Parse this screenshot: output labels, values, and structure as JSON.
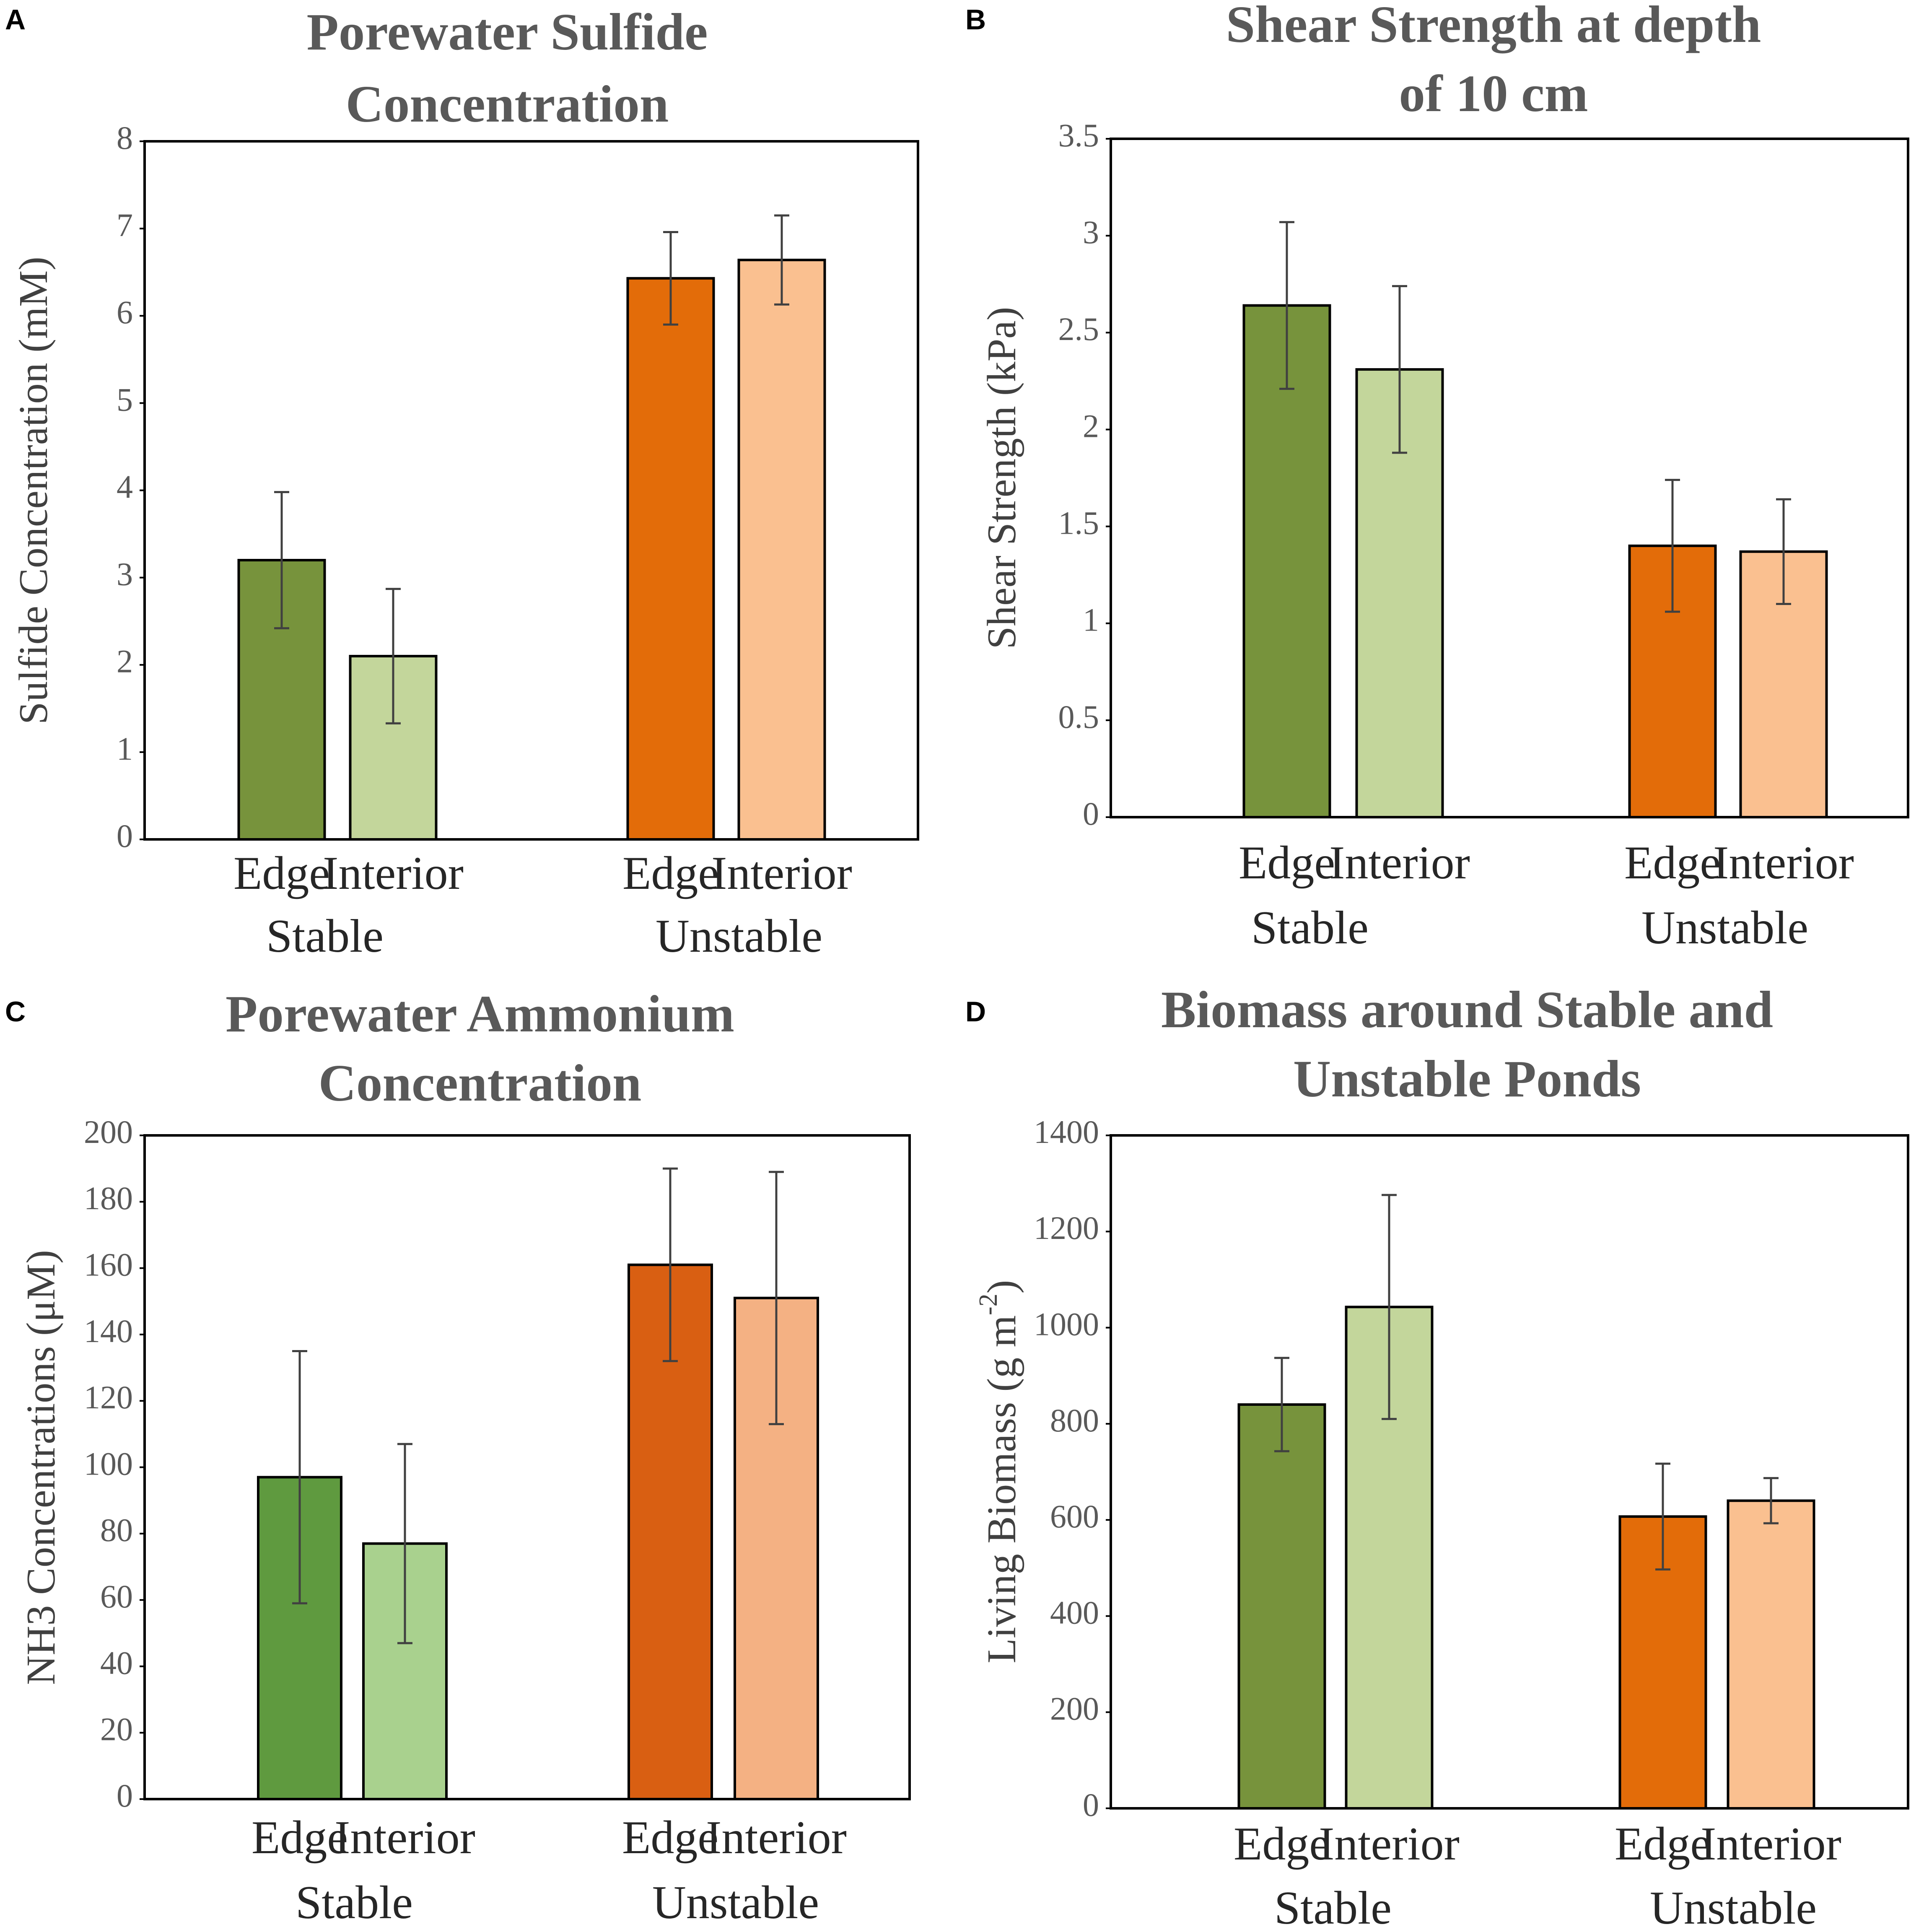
{
  "chart_data": [
    {
      "panel": "A",
      "type": "bar",
      "title": [
        "Porewater Sulfide",
        "Concentration"
      ],
      "ylabel": "Sulfide Concentration (mM)",
      "xlabel": "",
      "ylim": [
        0,
        8
      ],
      "yticks": [
        "0",
        "1",
        "2",
        "3",
        "4",
        "5",
        "6",
        "7",
        "8"
      ],
      "groups": [
        {
          "name": "Stable",
          "bars": [
            {
              "label": "Edge",
              "value": 3.2,
              "err": 0.78,
              "color": "#77933c"
            },
            {
              "label": "Interior",
              "value": 2.1,
              "err": 0.77,
              "color": "#c3d69b"
            }
          ]
        },
        {
          "name": "Unstable",
          "bars": [
            {
              "label": "Edge",
              "value": 6.43,
              "err": 0.53,
              "color": "#e36c09"
            },
            {
              "label": "Interior",
              "value": 6.64,
              "err": 0.51,
              "color": "#fac090"
            }
          ]
        }
      ]
    },
    {
      "panel": "B",
      "type": "bar",
      "title": [
        "Shear Strength at depth",
        "of 10 cm"
      ],
      "ylabel": "Shear Strength (kPa)",
      "xlabel": "",
      "ylim": [
        0,
        3.5
      ],
      "yticks": [
        "0",
        "0.5",
        "1",
        "1.5",
        "2",
        "2.5",
        "3",
        "3.5"
      ],
      "groups": [
        {
          "name": "Stable",
          "bars": [
            {
              "label": "Edge",
              "value": 2.64,
              "err": 0.43,
              "color": "#77933c"
            },
            {
              "label": "Interior",
              "value": 2.31,
              "err": 0.43,
              "color": "#c3d69b"
            }
          ]
        },
        {
          "name": "Unstable",
          "bars": [
            {
              "label": "Edge",
              "value": 1.4,
              "err": 0.34,
              "color": "#e36c09"
            },
            {
              "label": "Interior",
              "value": 1.37,
              "err": 0.27,
              "color": "#fac090"
            }
          ]
        }
      ]
    },
    {
      "panel": "C",
      "type": "bar",
      "title": [
        "Porewater Ammonium",
        "Concentration"
      ],
      "ylabel": "NH3 Concentrations (μM)",
      "xlabel": "",
      "ylim": [
        0,
        200
      ],
      "yticks": [
        "0",
        "20",
        "40",
        "60",
        "80",
        "100",
        "120",
        "140",
        "160",
        "180",
        "200"
      ],
      "groups": [
        {
          "name": "Stable",
          "bars": [
            {
              "label": "Edge",
              "value": 97,
              "err": 38,
              "color": "#5f9a3f"
            },
            {
              "label": "Interior",
              "value": 77,
              "err": 30,
              "color": "#a9d18e"
            }
          ]
        },
        {
          "name": "Unstable",
          "bars": [
            {
              "label": "Edge",
              "value": 161,
              "err": 29,
              "color": "#d95f12"
            },
            {
              "label": "Interior",
              "value": 151,
              "err": 38,
              "color": "#f4b183"
            }
          ]
        }
      ]
    },
    {
      "panel": "D",
      "type": "bar",
      "title": [
        "Biomass around Stable and",
        "Unstable Ponds"
      ],
      "ylabel": "Living Biomass (g m",
      "ylabel_sup": "-2",
      "ylabel_end": ")",
      "xlabel": "",
      "ylim": [
        0,
        1400
      ],
      "yticks": [
        "0",
        "200",
        "400",
        "600",
        "800",
        "1000",
        "1200",
        "1400"
      ],
      "groups": [
        {
          "name": "Stable",
          "bars": [
            {
              "label": "Edge",
              "value": 840,
              "err": 97,
              "color": "#77933c"
            },
            {
              "label": "Interior",
              "value": 1043,
              "err": 233,
              "color": "#c3d69b"
            }
          ]
        },
        {
          "name": "Unstable",
          "bars": [
            {
              "label": "Edge",
              "value": 607,
              "err": 110,
              "color": "#e36c09"
            },
            {
              "label": "Interior",
              "value": 640,
              "err": 47,
              "color": "#fac090"
            }
          ]
        }
      ]
    }
  ]
}
